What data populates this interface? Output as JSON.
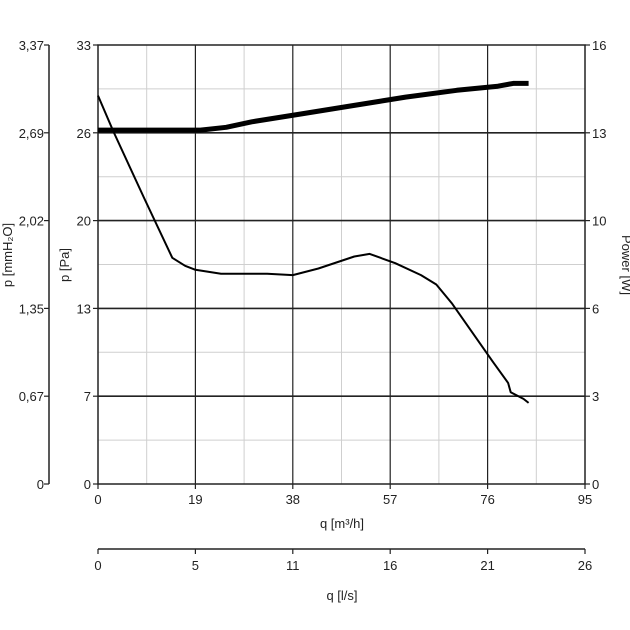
{
  "chart_data": {
    "type": "line",
    "x": {
      "label": "q [m³/h]",
      "range": [
        0,
        95
      ],
      "ticks": [
        "0",
        "19",
        "38",
        "57",
        "76",
        "95"
      ]
    },
    "x2": {
      "label": "q [l/s]",
      "range": [
        0,
        26
      ],
      "ticks": [
        "0",
        "5",
        "11",
        "16",
        "21",
        "26"
      ]
    },
    "y_left_outer": {
      "label": "p [mmH₂O]",
      "ticks": [
        "0",
        "0,67",
        "1,35",
        "2,02",
        "2,69",
        "3,37"
      ]
    },
    "y_left": {
      "label": "p [Pa]",
      "range": [
        0,
        33
      ],
      "ticks": [
        "0",
        "7",
        "13",
        "20",
        "26",
        "33"
      ]
    },
    "y_right": {
      "label": "Power [W]",
      "range": [
        0,
        16
      ],
      "ticks": [
        "0",
        "3",
        "6",
        "10",
        "13",
        "16"
      ]
    },
    "grid": true,
    "series": [
      {
        "axis": "left",
        "color": "#000000",
        "points": [
          [
            0,
            29.2
          ],
          [
            3,
            26.5
          ],
          [
            9,
            21.5
          ],
          [
            14.5,
            17
          ],
          [
            17,
            16.4
          ],
          [
            19,
            16.1
          ],
          [
            24,
            15.8
          ],
          [
            33,
            15.8
          ],
          [
            38,
            15.7
          ],
          [
            43,
            16.2
          ],
          [
            50,
            17.1
          ],
          [
            53,
            17.3
          ],
          [
            58,
            16.6
          ],
          [
            63,
            15.7
          ],
          [
            66,
            15.0
          ],
          [
            69,
            13.6
          ],
          [
            73,
            11.4
          ],
          [
            77,
            9.2
          ],
          [
            80,
            7.6
          ],
          [
            80.5,
            6.9
          ],
          [
            83,
            6.4
          ],
          [
            84,
            6.1
          ]
        ]
      },
      {
        "axis": "right",
        "color": "#000000",
        "points": [
          [
            0,
            12.9
          ],
          [
            10,
            12.9
          ],
          [
            20,
            12.9
          ],
          [
            25,
            13.0
          ],
          [
            30,
            13.2
          ],
          [
            40,
            13.5
          ],
          [
            50,
            13.8
          ],
          [
            60,
            14.1
          ],
          [
            70,
            14.35
          ],
          [
            78,
            14.5
          ],
          [
            81,
            14.6
          ],
          [
            84,
            14.6
          ]
        ]
      }
    ]
  }
}
